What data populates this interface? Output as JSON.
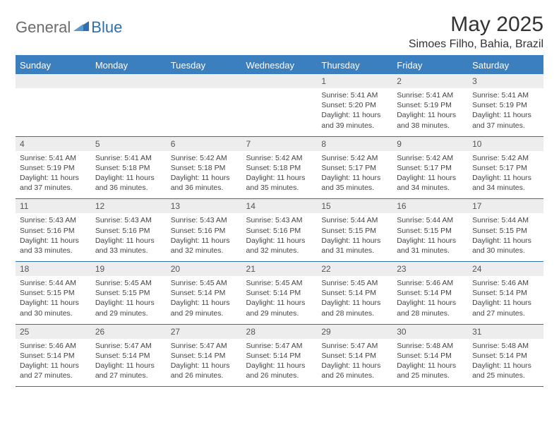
{
  "brand": {
    "part1": "General",
    "part2": "Blue"
  },
  "title": "May 2025",
  "location": "Simoes Filho, Bahia, Brazil",
  "colors": {
    "accent": "#3b7fbf",
    "accent_border": "#2f6fab",
    "daynum_bg": "#ededed",
    "text": "#333333",
    "body_text": "#444444",
    "logo_gray": "#6b6b6b"
  },
  "weekdays": [
    "Sunday",
    "Monday",
    "Tuesday",
    "Wednesday",
    "Thursday",
    "Friday",
    "Saturday"
  ],
  "weeks": [
    [
      null,
      null,
      null,
      null,
      {
        "n": "1",
        "sr": "5:41 AM",
        "ss": "5:20 PM",
        "dl": "11 hours and 39 minutes."
      },
      {
        "n": "2",
        "sr": "5:41 AM",
        "ss": "5:19 PM",
        "dl": "11 hours and 38 minutes."
      },
      {
        "n": "3",
        "sr": "5:41 AM",
        "ss": "5:19 PM",
        "dl": "11 hours and 37 minutes."
      }
    ],
    [
      {
        "n": "4",
        "sr": "5:41 AM",
        "ss": "5:19 PM",
        "dl": "11 hours and 37 minutes."
      },
      {
        "n": "5",
        "sr": "5:41 AM",
        "ss": "5:18 PM",
        "dl": "11 hours and 36 minutes."
      },
      {
        "n": "6",
        "sr": "5:42 AM",
        "ss": "5:18 PM",
        "dl": "11 hours and 36 minutes."
      },
      {
        "n": "7",
        "sr": "5:42 AM",
        "ss": "5:18 PM",
        "dl": "11 hours and 35 minutes."
      },
      {
        "n": "8",
        "sr": "5:42 AM",
        "ss": "5:17 PM",
        "dl": "11 hours and 35 minutes."
      },
      {
        "n": "9",
        "sr": "5:42 AM",
        "ss": "5:17 PM",
        "dl": "11 hours and 34 minutes."
      },
      {
        "n": "10",
        "sr": "5:42 AM",
        "ss": "5:17 PM",
        "dl": "11 hours and 34 minutes."
      }
    ],
    [
      {
        "n": "11",
        "sr": "5:43 AM",
        "ss": "5:16 PM",
        "dl": "11 hours and 33 minutes."
      },
      {
        "n": "12",
        "sr": "5:43 AM",
        "ss": "5:16 PM",
        "dl": "11 hours and 33 minutes."
      },
      {
        "n": "13",
        "sr": "5:43 AM",
        "ss": "5:16 PM",
        "dl": "11 hours and 32 minutes."
      },
      {
        "n": "14",
        "sr": "5:43 AM",
        "ss": "5:16 PM",
        "dl": "11 hours and 32 minutes."
      },
      {
        "n": "15",
        "sr": "5:44 AM",
        "ss": "5:15 PM",
        "dl": "11 hours and 31 minutes."
      },
      {
        "n": "16",
        "sr": "5:44 AM",
        "ss": "5:15 PM",
        "dl": "11 hours and 31 minutes."
      },
      {
        "n": "17",
        "sr": "5:44 AM",
        "ss": "5:15 PM",
        "dl": "11 hours and 30 minutes."
      }
    ],
    [
      {
        "n": "18",
        "sr": "5:44 AM",
        "ss": "5:15 PM",
        "dl": "11 hours and 30 minutes."
      },
      {
        "n": "19",
        "sr": "5:45 AM",
        "ss": "5:15 PM",
        "dl": "11 hours and 29 minutes."
      },
      {
        "n": "20",
        "sr": "5:45 AM",
        "ss": "5:14 PM",
        "dl": "11 hours and 29 minutes."
      },
      {
        "n": "21",
        "sr": "5:45 AM",
        "ss": "5:14 PM",
        "dl": "11 hours and 29 minutes."
      },
      {
        "n": "22",
        "sr": "5:45 AM",
        "ss": "5:14 PM",
        "dl": "11 hours and 28 minutes."
      },
      {
        "n": "23",
        "sr": "5:46 AM",
        "ss": "5:14 PM",
        "dl": "11 hours and 28 minutes."
      },
      {
        "n": "24",
        "sr": "5:46 AM",
        "ss": "5:14 PM",
        "dl": "11 hours and 27 minutes."
      }
    ],
    [
      {
        "n": "25",
        "sr": "5:46 AM",
        "ss": "5:14 PM",
        "dl": "11 hours and 27 minutes."
      },
      {
        "n": "26",
        "sr": "5:47 AM",
        "ss": "5:14 PM",
        "dl": "11 hours and 27 minutes."
      },
      {
        "n": "27",
        "sr": "5:47 AM",
        "ss": "5:14 PM",
        "dl": "11 hours and 26 minutes."
      },
      {
        "n": "28",
        "sr": "5:47 AM",
        "ss": "5:14 PM",
        "dl": "11 hours and 26 minutes."
      },
      {
        "n": "29",
        "sr": "5:47 AM",
        "ss": "5:14 PM",
        "dl": "11 hours and 26 minutes."
      },
      {
        "n": "30",
        "sr": "5:48 AM",
        "ss": "5:14 PM",
        "dl": "11 hours and 25 minutes."
      },
      {
        "n": "31",
        "sr": "5:48 AM",
        "ss": "5:14 PM",
        "dl": "11 hours and 25 minutes."
      }
    ]
  ],
  "labels": {
    "sunrise": "Sunrise: ",
    "sunset": "Sunset: ",
    "daylight": "Daylight: "
  }
}
